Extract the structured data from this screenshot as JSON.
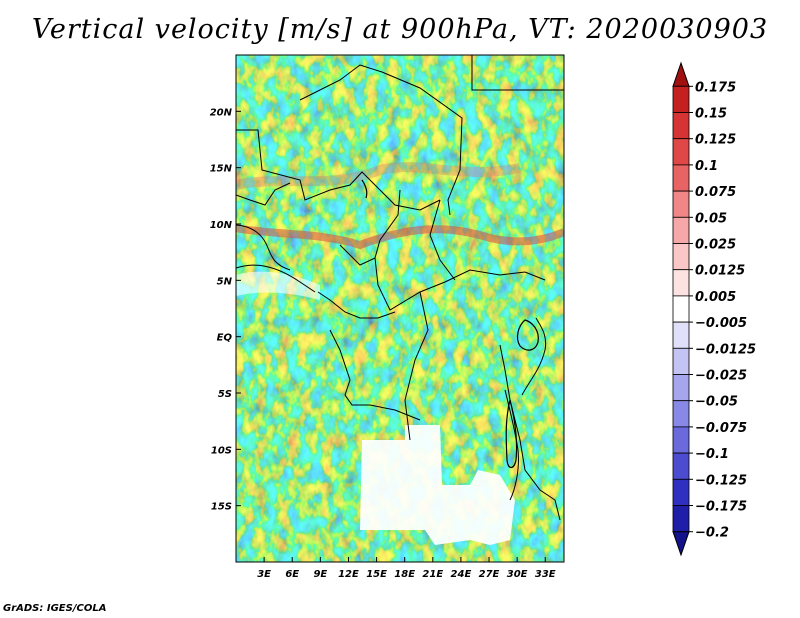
{
  "title": "Vertical velocity [m/s] at 900hPa, VT: 2020030903",
  "credit": "GrADS: IGES/COLA",
  "map": {
    "lon_range": [
      0,
      35
    ],
    "lat_range": [
      -20,
      25
    ],
    "lat_labels": [
      {
        "lat": 20,
        "label": "20N"
      },
      {
        "lat": 15,
        "label": "15N"
      },
      {
        "lat": 10,
        "label": "10N"
      },
      {
        "lat": 5,
        "label": "5N"
      },
      {
        "lat": 0,
        "label": "EQ"
      },
      {
        "lat": -5,
        "label": "5S"
      },
      {
        "lat": -10,
        "label": "10S"
      },
      {
        "lat": -15,
        "label": "15S"
      }
    ],
    "lon_labels": [
      {
        "lon": 3,
        "label": "3E"
      },
      {
        "lon": 6,
        "label": "6E"
      },
      {
        "lon": 9,
        "label": "9E"
      },
      {
        "lon": 12,
        "label": "12E"
      },
      {
        "lon": 15,
        "label": "15E"
      },
      {
        "lon": 18,
        "label": "18E"
      },
      {
        "lon": 21,
        "label": "21E"
      },
      {
        "lon": 24,
        "label": "24E"
      },
      {
        "lon": 27,
        "label": "27E"
      },
      {
        "lon": 30,
        "label": "30E"
      },
      {
        "lon": 33,
        "label": "33E"
      }
    ]
  },
  "colorbar": {
    "levels": [
      {
        "label": "0.175",
        "color": "#b01818"
      },
      {
        "label": "0.15",
        "color": "#c42020"
      },
      {
        "label": "0.125",
        "color": "#d63434"
      },
      {
        "label": "0.1",
        "color": "#e04848"
      },
      {
        "label": "0.075",
        "color": "#e86464"
      },
      {
        "label": "0.05",
        "color": "#f08686"
      },
      {
        "label": "0.025",
        "color": "#f6a8a8"
      },
      {
        "label": "0.0125",
        "color": "#fac6c6"
      },
      {
        "label": "0.005",
        "color": "#fde2e2"
      },
      {
        "label": "−0.005",
        "color": "#ffffff"
      },
      {
        "label": "−0.0125",
        "color": "#e0e0fa"
      },
      {
        "label": "−0.025",
        "color": "#c4c4f4"
      },
      {
        "label": "−0.05",
        "color": "#a6a6ee"
      },
      {
        "label": "−0.075",
        "color": "#8888e6"
      },
      {
        "label": "−0.1",
        "color": "#6a6adc"
      },
      {
        "label": "−0.125",
        "color": "#4c4cd0"
      },
      {
        "label": "−0.175",
        "color": "#3030c0"
      },
      {
        "label": "−0.2",
        "color": "#1e1ea8"
      }
    ],
    "top_color": "#a01010",
    "bottom_color": "#12128a"
  }
}
